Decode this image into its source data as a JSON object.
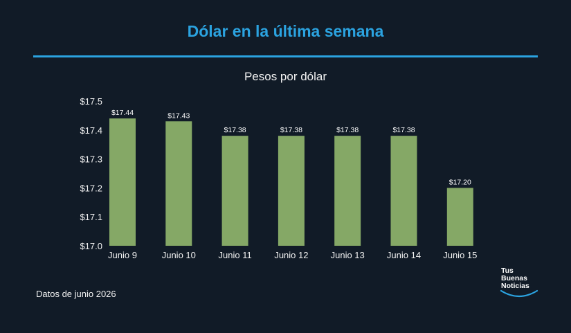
{
  "header": {
    "title": "Dólar en la última semana",
    "subtitle": "Pesos por dólar"
  },
  "footer": {
    "source": "Datos de junio 2026"
  },
  "logo": {
    "lines": [
      "Tus",
      "Buenas",
      "Noticias"
    ]
  },
  "colors": {
    "background": "#111b27",
    "accent": "#2ba3e0",
    "bar": "#85a866"
  },
  "chart_data": {
    "type": "bar",
    "title": "Dólar en la última semana",
    "subtitle": "Pesos por dólar",
    "categories": [
      "Junio 9",
      "Junio 10",
      "Junio 11",
      "Junio 12",
      "Junio 13",
      "Junio 14",
      "Junio 15"
    ],
    "values": [
      17.44,
      17.43,
      17.38,
      17.38,
      17.38,
      17.38,
      17.2
    ],
    "data_labels": [
      "$17.44",
      "$17.43",
      "$17.38",
      "$17.38",
      "$17.38",
      "$17.38",
      "$17.20"
    ],
    "ylim": [
      17.0,
      17.5
    ],
    "yticks": [
      17.0,
      17.1,
      17.2,
      17.3,
      17.4,
      17.5
    ],
    "ytick_labels": [
      "$17.0",
      "$17.1",
      "$17.2",
      "$17.3",
      "$17.4",
      "$17.5"
    ],
    "grid": false,
    "xlabel": "",
    "ylabel": ""
  }
}
